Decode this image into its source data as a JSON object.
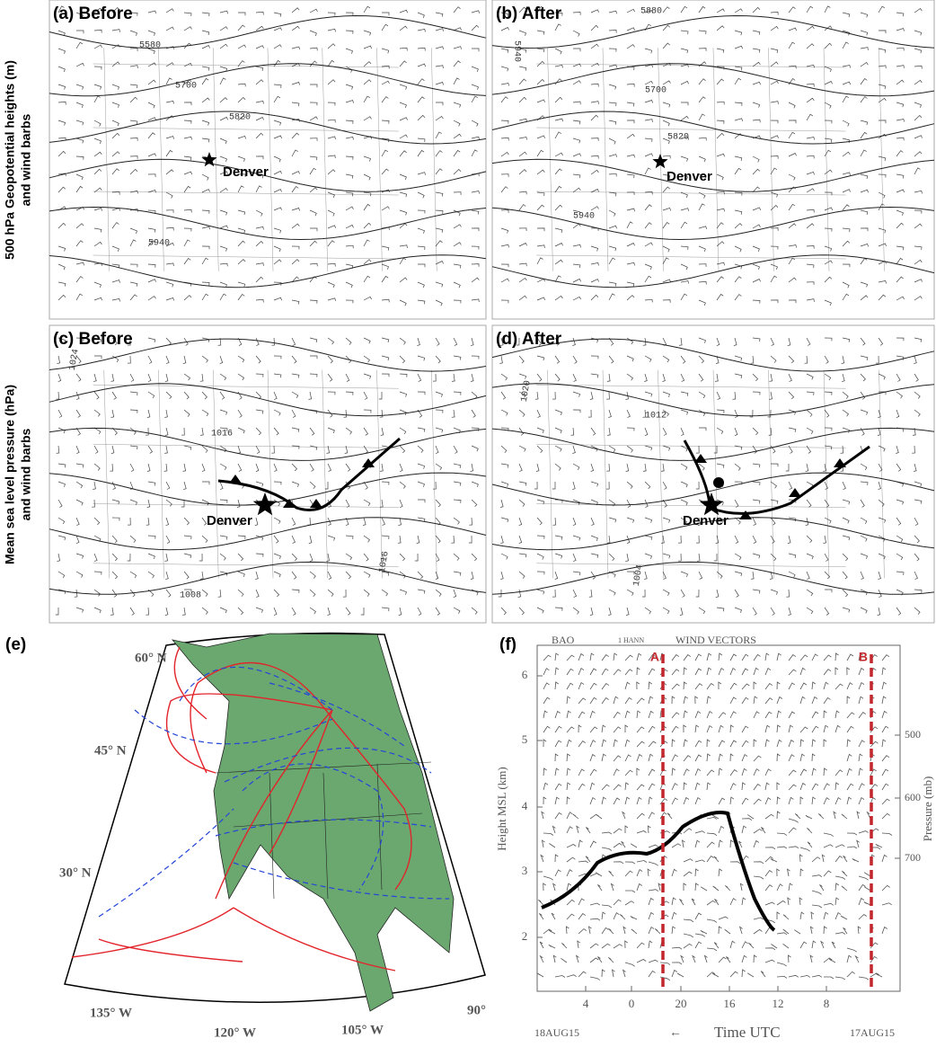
{
  "row_labels": [
    [
      "500 hPa Geopotential heights (m)",
      "and wind barbs"
    ],
    [
      "Mean sea level pressure (hPa)",
      "and wind barbs"
    ]
  ],
  "panels": [
    {
      "label": "(a) Before",
      "place": "Denver",
      "contours": [
        "5580",
        "5700",
        "5820",
        "5940"
      ]
    },
    {
      "label": "(b) After",
      "place": "Denver",
      "contours": [
        "5880",
        "5940",
        "5700",
        "5820",
        "5940"
      ]
    },
    {
      "label": "(c) Before",
      "place": "Denver",
      "contours": [
        "1024",
        "1016",
        "1016",
        "1008"
      ]
    },
    {
      "label": "(d) After",
      "place": "Denver",
      "contours": [
        "1020",
        "1012",
        "1004"
      ]
    }
  ],
  "trajectory_map": {
    "label": "(e)",
    "lat_labels": [
      "60° N",
      "45° N",
      "30° N"
    ],
    "lon_labels": [
      "135° W",
      "120° W",
      "105° W",
      "90°"
    ]
  },
  "wind_profile": {
    "label": "(f)",
    "site": "BAO",
    "filter": "1 HANN",
    "title": "WIND VECTORS",
    "markers": [
      "A",
      "B"
    ],
    "y_label": "Height MSL (km)",
    "y_ticks": [
      "2",
      "3",
      "4",
      "5",
      "6"
    ],
    "y2_label": "Pressure (mb)",
    "y2_ticks": [
      "500",
      "600",
      "700"
    ],
    "x_ticks": [
      "4",
      "0",
      "20",
      "16",
      "12",
      "8"
    ],
    "x_start": "18AUG15",
    "x_arrow": "←",
    "x_label": "Time UTC",
    "x_end": "17AUG15"
  }
}
